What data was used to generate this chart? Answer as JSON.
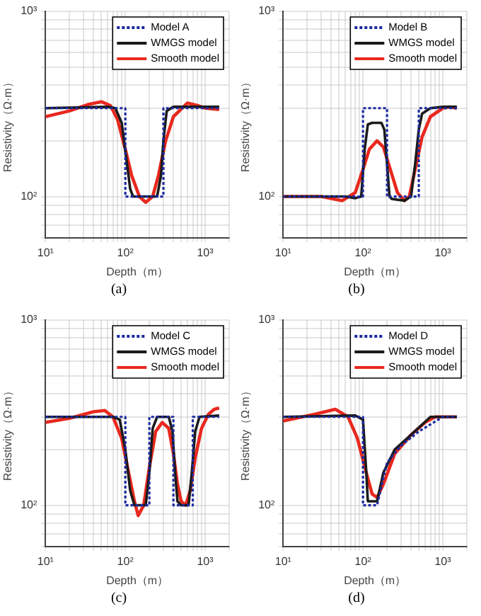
{
  "chart_data": [
    {
      "type": "line",
      "xlabel": "Depth（m）",
      "ylabel": "Resistivity（Ω·m）",
      "annotations": [
        "(a)"
      ],
      "log": "xy",
      "grid": true,
      "legend": "top right",
      "marker": "none",
      "xlim": [
        10,
        2000
      ],
      "ylim": [
        60,
        1000
      ],
      "xticks": [
        {
          "value": 10,
          "label": "10¹"
        },
        {
          "value": 20,
          "label": null
        },
        {
          "value": 30,
          "label": null
        },
        {
          "value": 40,
          "label": null
        },
        {
          "value": 50,
          "label": null
        },
        {
          "value": 60,
          "label": null
        },
        {
          "value": 70,
          "label": null
        },
        {
          "value": 80,
          "label": null
        },
        {
          "value": 90,
          "label": null
        },
        {
          "value": 100,
          "label": "10²"
        },
        {
          "value": 200,
          "label": null
        },
        {
          "value": 300,
          "label": null
        },
        {
          "value": 400,
          "label": null
        },
        {
          "value": 500,
          "label": null
        },
        {
          "value": 600,
          "label": null
        },
        {
          "value": 700,
          "label": null
        },
        {
          "value": 800,
          "label": null
        },
        {
          "value": 900,
          "label": null
        },
        {
          "value": 1000,
          "label": "10³"
        },
        {
          "value": 2000,
          "label": null
        }
      ],
      "yticks": [
        {
          "value": 60,
          "label": null
        },
        {
          "value": 70,
          "label": null
        },
        {
          "value": 80,
          "label": null
        },
        {
          "value": 90,
          "label": null
        },
        {
          "value": 100,
          "label": "10²"
        },
        {
          "value": 200,
          "label": null
        },
        {
          "value": 300,
          "label": null
        },
        {
          "value": 400,
          "label": null
        },
        {
          "value": 500,
          "label": null
        },
        {
          "value": 600,
          "label": null
        },
        {
          "value": 700,
          "label": null
        },
        {
          "value": 800,
          "label": null
        },
        {
          "value": 900,
          "label": null
        },
        {
          "value": 1000,
          "label": "10³"
        }
      ],
      "series": [
        {
          "name": "Model A",
          "color": "#1c2aa0",
          "line_style": "dotted",
          "x": [
            10,
            100,
            100,
            300,
            300,
            1500
          ],
          "values": [
            300,
            300,
            100,
            100,
            300,
            300
          ]
        },
        {
          "name": "WMGS model",
          "color": "#1a1a1a",
          "line_style": "solid",
          "x": [
            10,
            60,
            75,
            90,
            105,
            115,
            125,
            250,
            280,
            300,
            330,
            400,
            1500
          ],
          "values": [
            300,
            305,
            300,
            250,
            150,
            110,
            100,
            100,
            130,
            200,
            290,
            305,
            305
          ]
        },
        {
          "name": "Smooth model",
          "color": "#e8281e",
          "line_style": "solid",
          "x": [
            10,
            20,
            35,
            50,
            65,
            80,
            100,
            120,
            150,
            180,
            220,
            260,
            320,
            400,
            600,
            800,
            1000,
            1500
          ],
          "values": [
            270,
            290,
            315,
            325,
            310,
            260,
            180,
            130,
            100,
            93,
            100,
            130,
            200,
            270,
            320,
            310,
            300,
            295
          ]
        }
      ]
    },
    {
      "type": "line",
      "xlabel": "Depth（m）",
      "ylabel": "Resistivity（Ω·m）",
      "annotations": [
        "(b)"
      ],
      "log": "xy",
      "grid": true,
      "legend": "top right",
      "marker": "none",
      "xlim": [
        10,
        2000
      ],
      "ylim": [
        60,
        1000
      ],
      "xticks": [
        {
          "value": 10,
          "label": "10¹"
        },
        {
          "value": 20,
          "label": null
        },
        {
          "value": 30,
          "label": null
        },
        {
          "value": 40,
          "label": null
        },
        {
          "value": 50,
          "label": null
        },
        {
          "value": 60,
          "label": null
        },
        {
          "value": 70,
          "label": null
        },
        {
          "value": 80,
          "label": null
        },
        {
          "value": 90,
          "label": null
        },
        {
          "value": 100,
          "label": "10²"
        },
        {
          "value": 200,
          "label": null
        },
        {
          "value": 300,
          "label": null
        },
        {
          "value": 400,
          "label": null
        },
        {
          "value": 500,
          "label": null
        },
        {
          "value": 600,
          "label": null
        },
        {
          "value": 700,
          "label": null
        },
        {
          "value": 800,
          "label": null
        },
        {
          "value": 900,
          "label": null
        },
        {
          "value": 1000,
          "label": "10³"
        },
        {
          "value": 2000,
          "label": null
        }
      ],
      "yticks": [
        {
          "value": 60,
          "label": null
        },
        {
          "value": 70,
          "label": null
        },
        {
          "value": 80,
          "label": null
        },
        {
          "value": 90,
          "label": null
        },
        {
          "value": 100,
          "label": "10²"
        },
        {
          "value": 200,
          "label": null
        },
        {
          "value": 300,
          "label": null
        },
        {
          "value": 400,
          "label": null
        },
        {
          "value": 500,
          "label": null
        },
        {
          "value": 600,
          "label": null
        },
        {
          "value": 700,
          "label": null
        },
        {
          "value": 800,
          "label": null
        },
        {
          "value": 900,
          "label": null
        },
        {
          "value": 1000,
          "label": "10³"
        }
      ],
      "series": [
        {
          "name": "Model B",
          "color": "#1c2aa0",
          "line_style": "dotted",
          "x": [
            10,
            100,
            100,
            200,
            200,
            500,
            500,
            1500
          ],
          "values": [
            100,
            100,
            300,
            300,
            100,
            100,
            300,
            300
          ]
        },
        {
          "name": "WMGS model",
          "color": "#1a1a1a",
          "line_style": "solid",
          "x": [
            10,
            60,
            80,
            95,
            105,
            115,
            130,
            170,
            185,
            200,
            215,
            230,
            330,
            400,
            450,
            500,
            550,
            700,
            1000,
            1500
          ],
          "values": [
            100,
            100,
            98,
            100,
            180,
            245,
            250,
            250,
            230,
            150,
            100,
            97,
            95,
            100,
            150,
            230,
            280,
            300,
            305,
            305
          ]
        },
        {
          "name": "Smooth model",
          "color": "#e8281e",
          "line_style": "solid",
          "x": [
            10,
            30,
            55,
            80,
            100,
            120,
            150,
            180,
            220,
            270,
            330,
            380,
            450,
            550,
            700,
            1000,
            1200,
            1500
          ],
          "values": [
            100,
            100,
            95,
            105,
            140,
            180,
            200,
            185,
            140,
            105,
            95,
            100,
            140,
            210,
            270,
            300,
            305,
            300
          ]
        }
      ]
    },
    {
      "type": "line",
      "xlabel": "Depth（m）",
      "ylabel": "Resistivity（Ω·m）",
      "annotations": [
        "(c)"
      ],
      "log": "xy",
      "grid": true,
      "legend": "top right",
      "marker": "none",
      "xlim": [
        10,
        2000
      ],
      "ylim": [
        60,
        1000
      ],
      "xticks": [
        {
          "value": 10,
          "label": "10¹"
        },
        {
          "value": 20,
          "label": null
        },
        {
          "value": 30,
          "label": null
        },
        {
          "value": 40,
          "label": null
        },
        {
          "value": 50,
          "label": null
        },
        {
          "value": 60,
          "label": null
        },
        {
          "value": 70,
          "label": null
        },
        {
          "value": 80,
          "label": null
        },
        {
          "value": 90,
          "label": null
        },
        {
          "value": 100,
          "label": "10²"
        },
        {
          "value": 200,
          "label": null
        },
        {
          "value": 300,
          "label": null
        },
        {
          "value": 400,
          "label": null
        },
        {
          "value": 500,
          "label": null
        },
        {
          "value": 600,
          "label": null
        },
        {
          "value": 700,
          "label": null
        },
        {
          "value": 800,
          "label": null
        },
        {
          "value": 900,
          "label": null
        },
        {
          "value": 1000,
          "label": "10³"
        },
        {
          "value": 2000,
          "label": null
        }
      ],
      "yticks": [
        {
          "value": 60,
          "label": null
        },
        {
          "value": 70,
          "label": null
        },
        {
          "value": 80,
          "label": null
        },
        {
          "value": 90,
          "label": null
        },
        {
          "value": 100,
          "label": "10²"
        },
        {
          "value": 200,
          "label": null
        },
        {
          "value": 300,
          "label": null
        },
        {
          "value": 400,
          "label": null
        },
        {
          "value": 500,
          "label": null
        },
        {
          "value": 600,
          "label": null
        },
        {
          "value": 700,
          "label": null
        },
        {
          "value": 800,
          "label": null
        },
        {
          "value": 900,
          "label": null
        },
        {
          "value": 1000,
          "label": "10³"
        }
      ],
      "series": [
        {
          "name": "Model C",
          "color": "#1c2aa0",
          "line_style": "dotted",
          "x": [
            10,
            100,
            100,
            200,
            200,
            400,
            400,
            700,
            700,
            1500
          ],
          "values": [
            300,
            300,
            100,
            100,
            300,
            300,
            100,
            100,
            300,
            300
          ]
        },
        {
          "name": "WMGS model",
          "color": "#1a1a1a",
          "line_style": "solid",
          "x": [
            10,
            70,
            85,
            100,
            115,
            130,
            180,
            200,
            220,
            250,
            350,
            390,
            420,
            450,
            500,
            620,
            680,
            750,
            850,
            1500
          ],
          "values": [
            300,
            300,
            290,
            200,
            120,
            100,
            100,
            150,
            260,
            300,
            300,
            250,
            150,
            105,
            100,
            100,
            150,
            250,
            300,
            305
          ]
        },
        {
          "name": "Smooth model",
          "color": "#e8281e",
          "line_style": "solid",
          "x": [
            10,
            20,
            40,
            55,
            70,
            90,
            110,
            130,
            145,
            170,
            200,
            240,
            290,
            350,
            400,
            450,
            500,
            570,
            650,
            750,
            900,
            1100,
            1300,
            1500
          ],
          "values": [
            280,
            295,
            320,
            325,
            300,
            230,
            150,
            105,
            88,
            100,
            160,
            250,
            280,
            260,
            190,
            130,
            105,
            100,
            120,
            180,
            260,
            310,
            330,
            335
          ]
        }
      ]
    },
    {
      "type": "line",
      "xlabel": "Depth（m）",
      "ylabel": "Resistivity（Ω·m）",
      "annotations": [
        "(d)"
      ],
      "log": "xy",
      "grid": true,
      "legend": "top right",
      "marker": "none",
      "xlim": [
        10,
        2000
      ],
      "ylim": [
        60,
        1000
      ],
      "xticks": [
        {
          "value": 10,
          "label": "10¹"
        },
        {
          "value": 20,
          "label": null
        },
        {
          "value": 30,
          "label": null
        },
        {
          "value": 40,
          "label": null
        },
        {
          "value": 50,
          "label": null
        },
        {
          "value": 60,
          "label": null
        },
        {
          "value": 70,
          "label": null
        },
        {
          "value": 80,
          "label": null
        },
        {
          "value": 90,
          "label": null
        },
        {
          "value": 100,
          "label": "10²"
        },
        {
          "value": 200,
          "label": null
        },
        {
          "value": 300,
          "label": null
        },
        {
          "value": 400,
          "label": null
        },
        {
          "value": 500,
          "label": null
        },
        {
          "value": 600,
          "label": null
        },
        {
          "value": 700,
          "label": null
        },
        {
          "value": 800,
          "label": null
        },
        {
          "value": 900,
          "label": null
        },
        {
          "value": 1000,
          "label": "10³"
        },
        {
          "value": 2000,
          "label": null
        }
      ],
      "yticks": [
        {
          "value": 60,
          "label": null
        },
        {
          "value": 70,
          "label": null
        },
        {
          "value": 80,
          "label": null
        },
        {
          "value": 90,
          "label": null
        },
        {
          "value": 100,
          "label": "10²"
        },
        {
          "value": 200,
          "label": null
        },
        {
          "value": 300,
          "label": null
        },
        {
          "value": 400,
          "label": null
        },
        {
          "value": 500,
          "label": null
        },
        {
          "value": 600,
          "label": null
        },
        {
          "value": 700,
          "label": null
        },
        {
          "value": 800,
          "label": null
        },
        {
          "value": 900,
          "label": null
        },
        {
          "value": 1000,
          "label": "10³"
        }
      ],
      "series": [
        {
          "name": "Model D",
          "color": "#1c2aa0",
          "line_style": "dotted",
          "x": [
            10,
            100,
            100,
            150,
            200,
            300,
            500,
            1000,
            1500
          ],
          "values": [
            300,
            300,
            100,
            100,
            170,
            210,
            250,
            300,
            300
          ]
        },
        {
          "name": "WMGS model",
          "color": "#1a1a1a",
          "line_style": "solid",
          "x": [
            10,
            80,
            100,
            110,
            115,
            150,
            180,
            250,
            400,
            700,
            1000,
            1500
          ],
          "values": [
            300,
            305,
            290,
            150,
            105,
            105,
            150,
            200,
            240,
            300,
            300,
            300
          ]
        },
        {
          "name": "Smooth model",
          "color": "#e8281e",
          "line_style": "solid",
          "x": [
            10,
            25,
            45,
            65,
            85,
            110,
            130,
            150,
            180,
            250,
            400,
            600,
            800,
            1500
          ],
          "values": [
            285,
            310,
            330,
            300,
            230,
            150,
            115,
            110,
            130,
            190,
            240,
            280,
            300,
            300
          ]
        }
      ]
    }
  ]
}
